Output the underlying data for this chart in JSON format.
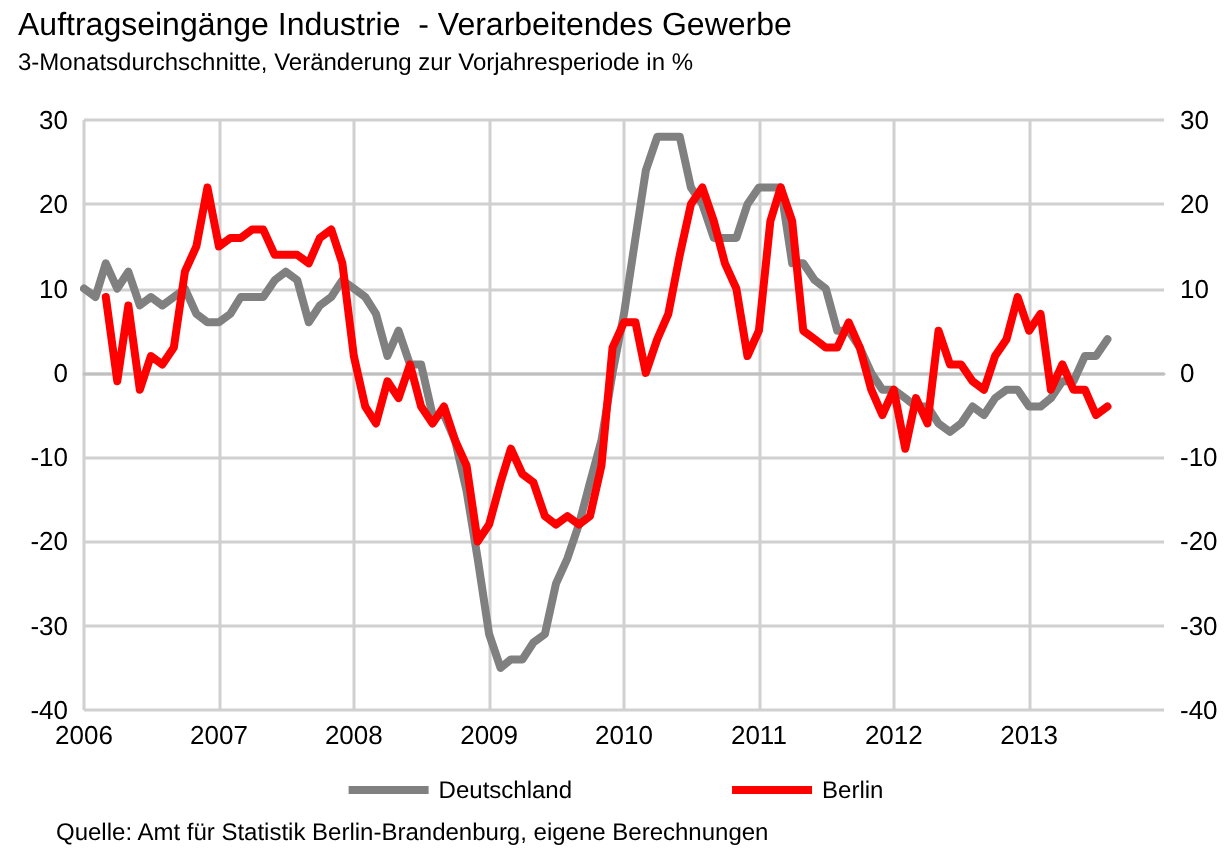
{
  "chart_data": {
    "type": "line",
    "title": "Auftragseingänge Industrie  - Verarbeitendes Gewerbe",
    "subtitle": "3-Monatsdurchschnitte, Veränderung zur Vorjahresperiode in %",
    "x": [
      "2006-01",
      "2006-02",
      "2006-03",
      "2006-04",
      "2006-05",
      "2006-06",
      "2006-07",
      "2006-08",
      "2006-09",
      "2006-10",
      "2006-11",
      "2006-12",
      "2007-01",
      "2007-02",
      "2007-03",
      "2007-04",
      "2007-05",
      "2007-06",
      "2007-07",
      "2007-08",
      "2007-09",
      "2007-10",
      "2007-11",
      "2007-12",
      "2008-01",
      "2008-02",
      "2008-03",
      "2008-04",
      "2008-05",
      "2008-06",
      "2008-07",
      "2008-08",
      "2008-09",
      "2008-10",
      "2008-11",
      "2008-12",
      "2009-01",
      "2009-02",
      "2009-03",
      "2009-04",
      "2009-05",
      "2009-06",
      "2009-07",
      "2009-08",
      "2009-09",
      "2009-10",
      "2009-11",
      "2009-12",
      "2010-01",
      "2010-02",
      "2010-03",
      "2010-04",
      "2010-05",
      "2010-06",
      "2010-07",
      "2010-08",
      "2010-09",
      "2010-10",
      "2010-11",
      "2010-12",
      "2011-01",
      "2011-02",
      "2011-03",
      "2011-04",
      "2011-05",
      "2011-06",
      "2011-07",
      "2011-08",
      "2011-09",
      "2011-10",
      "2011-11",
      "2011-12",
      "2012-01",
      "2012-02",
      "2012-03",
      "2012-04",
      "2012-05",
      "2012-06",
      "2012-07",
      "2012-08",
      "2012-09",
      "2012-10",
      "2012-11",
      "2012-12",
      "2013-01",
      "2013-02",
      "2013-03",
      "2013-04",
      "2013-05",
      "2013-06",
      "2013-07",
      "2013-08"
    ],
    "series": [
      {
        "name": "Deutschland",
        "color": "#808080",
        "values": [
          10,
          9,
          13,
          10,
          12,
          8,
          9,
          8,
          9,
          10,
          7,
          6,
          6,
          7,
          9,
          9,
          9,
          11,
          12,
          11,
          6,
          8,
          9,
          11,
          10,
          9,
          7,
          2,
          5,
          1,
          1,
          -5,
          -5,
          -8,
          -14,
          -22,
          -31,
          -35,
          -34,
          -34,
          -32,
          -31,
          -25,
          -22,
          -18,
          -13,
          -8,
          0,
          7,
          16,
          24,
          28,
          28,
          28,
          22,
          20,
          16,
          16,
          16,
          20,
          22,
          22,
          22,
          13,
          13,
          11,
          10,
          5,
          5,
          3,
          0,
          -2,
          -2,
          -3,
          -4,
          -4,
          -6,
          -7,
          -6,
          -4,
          -5,
          -3,
          -2,
          -2,
          -4,
          -4,
          -3,
          -1,
          -1,
          2,
          2,
          4
        ]
      },
      {
        "name": "Berlin",
        "color": "#ff0000",
        "values": [
          null,
          null,
          9,
          -1,
          8,
          -2,
          2,
          1,
          3,
          12,
          15,
          22,
          15,
          16,
          16,
          17,
          17,
          14,
          14,
          14,
          13,
          16,
          17,
          13,
          2,
          -4,
          -6,
          -1,
          -3,
          1,
          -4,
          -6,
          -4,
          -8,
          -11,
          -20,
          -18,
          -13,
          -9,
          -12,
          -13,
          -17,
          -18,
          -17,
          -18,
          -17,
          -11,
          3,
          6,
          6,
          0,
          4,
          7,
          14,
          20,
          22,
          18,
          13,
          10,
          2,
          5,
          18,
          22,
          18,
          5,
          4,
          3,
          3,
          6,
          3,
          -2,
          -5,
          -2,
          -9,
          -3,
          -6,
          5,
          1,
          1,
          -1,
          -2,
          2,
          4,
          9,
          5,
          7,
          -2,
          1,
          -2,
          -2,
          -5,
          -4
        ]
      }
    ],
    "xlim": [
      "2006-01",
      "2014-01"
    ],
    "xticks": [
      "2006",
      "2007",
      "2008",
      "2009",
      "2010",
      "2011",
      "2012",
      "2013"
    ],
    "ylim": [
      -40,
      30
    ],
    "yticks": [
      -40,
      -30,
      -20,
      -10,
      0,
      10,
      20,
      30
    ],
    "y2lim": [
      -40,
      30
    ],
    "y2ticks": [
      -40,
      -30,
      -20,
      -10,
      0,
      10,
      20,
      30
    ],
    "grid": true,
    "legend": "bottom",
    "marker": "none",
    "line_style": "solid",
    "annotations": [
      "Quelle: Amt für Statistik Berlin-Brandenburg, eigene Berechnungen"
    ]
  }
}
